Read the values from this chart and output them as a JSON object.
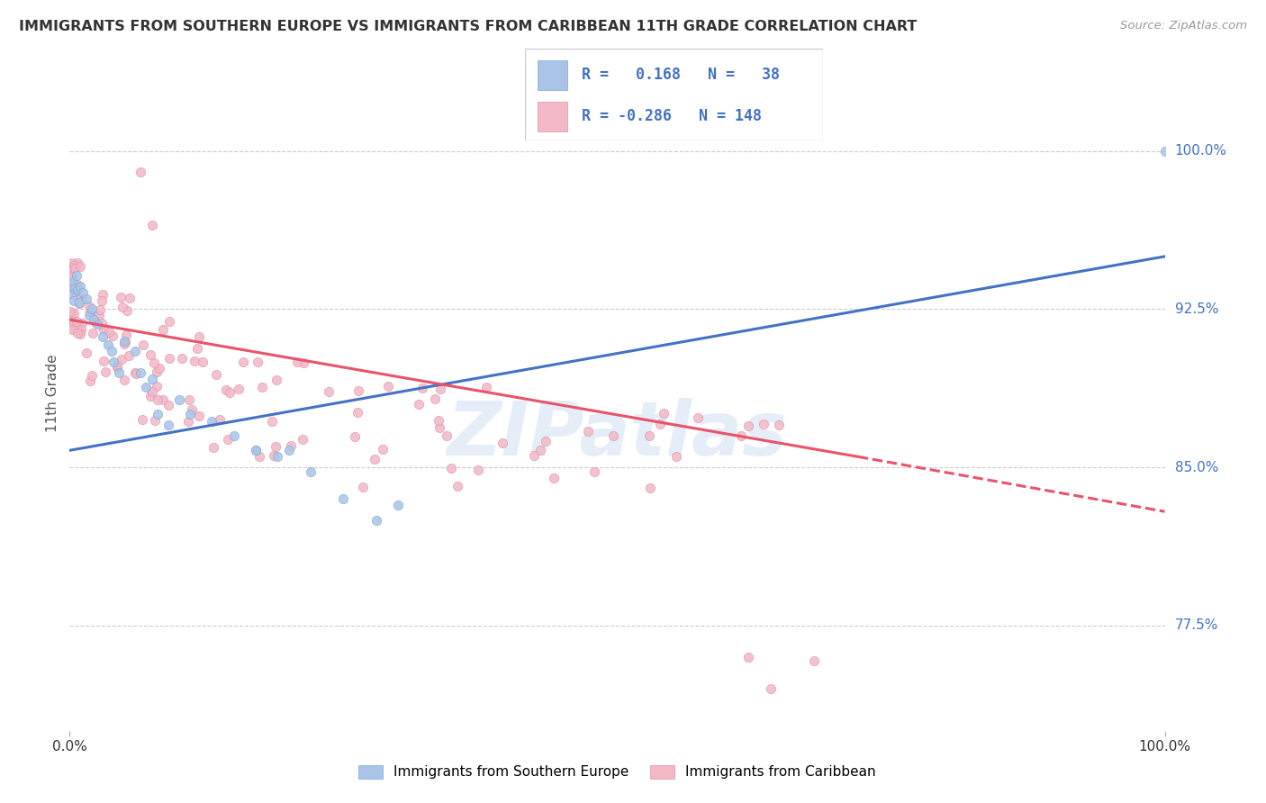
{
  "title": "IMMIGRANTS FROM SOUTHERN EUROPE VS IMMIGRANTS FROM CARIBBEAN 11TH GRADE CORRELATION CHART",
  "source": "Source: ZipAtlas.com",
  "ylabel": "11th Grade",
  "ytick_labels": [
    "100.0%",
    "92.5%",
    "85.0%",
    "77.5%"
  ],
  "ytick_values": [
    1.0,
    0.925,
    0.85,
    0.775
  ],
  "xlim": [
    0.0,
    1.0
  ],
  "ylim": [
    0.725,
    1.045
  ],
  "legend_text": [
    "R =   0.168   N =   38",
    "R = -0.286   N = 148"
  ],
  "color_blue": "#aac4e8",
  "color_pink": "#f2b8c6",
  "line_blue": "#4472c4",
  "line_pink": "#e8546a",
  "watermark": "ZIPatlas",
  "blue_line": {
    "x0": 0.0,
    "y0": 0.858,
    "x1": 1.0,
    "y1": 0.95
  },
  "pink_line_solid": {
    "x0": 0.0,
    "y0": 0.92,
    "x1": 0.72,
    "y1": 0.855
  },
  "pink_line_dash": {
    "x0": 0.72,
    "y0": 0.855,
    "x1": 1.0,
    "y1": 0.829
  }
}
